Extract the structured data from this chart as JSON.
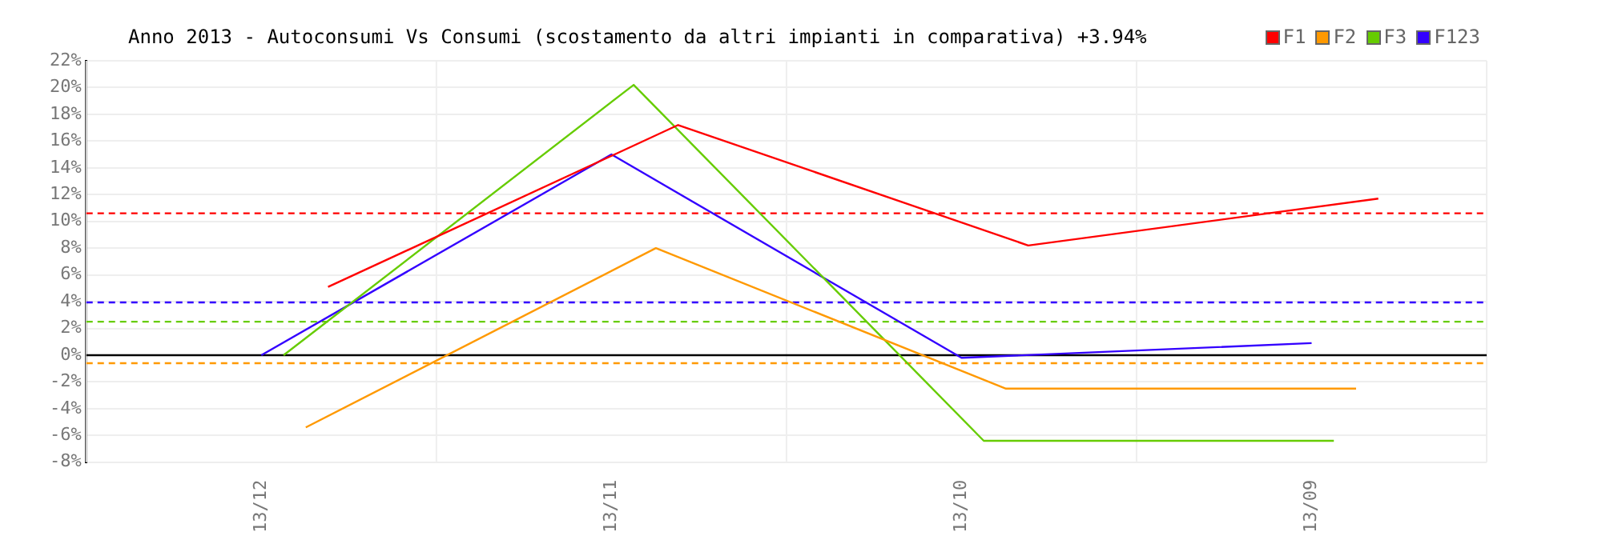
{
  "chart_data": {
    "type": "line",
    "title": "Anno 2013 - Autoconsumi Vs Consumi (scostamento da altri impianti in comparativa) +3.94%",
    "categories": [
      "13/12",
      "13/11",
      "13/10",
      "13/09"
    ],
    "series": [
      {
        "name": "F1",
        "color": "#ff0000",
        "values": [
          5.1,
          17.2,
          8.2,
          11.7
        ]
      },
      {
        "name": "F2",
        "color": "#ff9900",
        "values": [
          -5.4,
          8.0,
          -2.5,
          -2.5
        ]
      },
      {
        "name": "F3",
        "color": "#66cc00",
        "values": [
          0,
          20.2,
          -6.4,
          -6.4
        ]
      },
      {
        "name": "F123",
        "color": "#3300ff",
        "values": [
          0,
          15.0,
          -0.2,
          0.9
        ]
      }
    ],
    "ylim": [
      -8,
      22
    ],
    "yticks": [
      {
        "value": -8,
        "label": "-8%"
      },
      {
        "value": -6,
        "label": "-6%"
      },
      {
        "value": -4,
        "label": "-4%"
      },
      {
        "value": -2,
        "label": "-2%"
      },
      {
        "value": 0,
        "label": "0%"
      },
      {
        "value": 2,
        "label": "2%"
      },
      {
        "value": 4,
        "label": "4%"
      },
      {
        "value": 6,
        "label": "6%"
      },
      {
        "value": 8,
        "label": "8%"
      },
      {
        "value": 10,
        "label": "10%"
      },
      {
        "value": 12,
        "label": "12%"
      },
      {
        "value": 14,
        "label": "14%"
      },
      {
        "value": 16,
        "label": "16%"
      },
      {
        "value": 18,
        "label": "18%"
      },
      {
        "value": 20,
        "label": "20%"
      },
      {
        "value": 22,
        "label": "22%"
      }
    ],
    "ref_lines": [
      {
        "axis": "y",
        "value": 10.6,
        "color": "#ff0000",
        "line_style": "dashed"
      },
      {
        "axis": "y",
        "value": 3.94,
        "color": "#3300ff",
        "line_style": "dashed"
      },
      {
        "axis": "y",
        "value": 2.5,
        "color": "#66cc00",
        "line_style": "dashed"
      },
      {
        "axis": "y",
        "value": -0.6,
        "color": "#ff9900",
        "line_style": "dashed"
      },
      {
        "axis": "y",
        "value": 0,
        "color": "#000000",
        "line_style": "solid"
      }
    ],
    "grid": true,
    "legend": "top right",
    "marker": "none",
    "line_style": "solid"
  }
}
